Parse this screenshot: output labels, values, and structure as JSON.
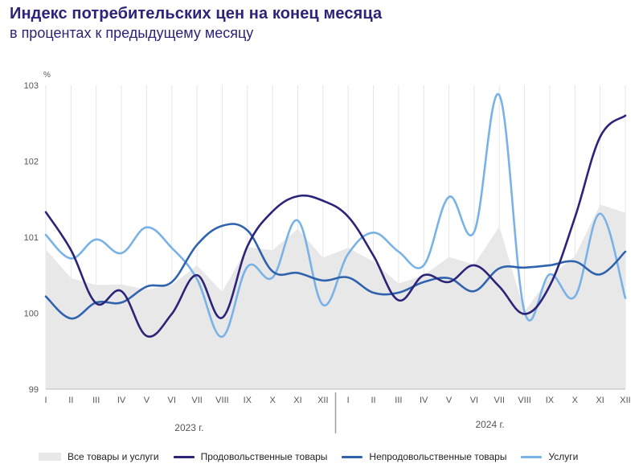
{
  "header": {
    "title": "Индекс потребительских цен на конец месяца",
    "subtitle": "в процентах к предыдущему месяцу"
  },
  "chart_data": {
    "type": "line",
    "unit_label": "%",
    "ylim": [
      99,
      103
    ],
    "yticks": [
      "99",
      "100",
      "101",
      "102",
      "103"
    ],
    "categories": [
      "I",
      "II",
      "III",
      "IV",
      "V",
      "VI",
      "VII",
      "VIII",
      "IX",
      "X",
      "XI",
      "XII",
      "I",
      "II",
      "III",
      "IV",
      "V",
      "VI",
      "VII",
      "VIII",
      "IX",
      "X",
      "XI",
      "XII"
    ],
    "years": [
      "2023 г.",
      "2024 г."
    ],
    "grid": "vertical",
    "legend_position": "bottom",
    "series": [
      {
        "name": "Все товары и услуги",
        "style": "area",
        "color": "#e8e8e8",
        "values": [
          100.84,
          100.46,
          100.37,
          100.38,
          100.31,
          100.37,
          100.63,
          100.28,
          100.87,
          100.83,
          101.11,
          100.73,
          100.86,
          100.68,
          100.39,
          100.5,
          100.74,
          100.64,
          101.14,
          100.02,
          100.48,
          100.75,
          101.43,
          101.32
        ]
      },
      {
        "name": "Продовольственные товары",
        "style": "line",
        "color": "#2b2478",
        "values": [
          101.33,
          100.83,
          100.13,
          100.29,
          99.7,
          99.99,
          100.5,
          99.94,
          100.88,
          101.34,
          101.54,
          101.48,
          101.27,
          100.76,
          100.17,
          100.5,
          100.41,
          100.63,
          100.35,
          99.99,
          100.36,
          101.26,
          102.32,
          102.6
        ]
      },
      {
        "name": "Непродовольственные товары",
        "style": "line",
        "color": "#2f63ad",
        "values": [
          100.22,
          99.93,
          100.14,
          100.14,
          100.35,
          100.41,
          100.9,
          101.15,
          101.09,
          100.55,
          100.53,
          100.43,
          100.47,
          100.27,
          100.27,
          100.41,
          100.46,
          100.29,
          100.59,
          100.6,
          100.63,
          100.68,
          100.51,
          100.81
        ]
      },
      {
        "name": "Услуги",
        "style": "line",
        "color": "#79b2e6",
        "values": [
          101.03,
          100.72,
          100.97,
          100.79,
          101.13,
          100.86,
          100.45,
          99.69,
          100.61,
          100.47,
          101.22,
          100.11,
          100.78,
          101.06,
          100.81,
          100.63,
          101.53,
          101.07,
          102.87,
          100.02,
          100.51,
          100.22,
          101.31,
          100.2
        ]
      }
    ]
  }
}
